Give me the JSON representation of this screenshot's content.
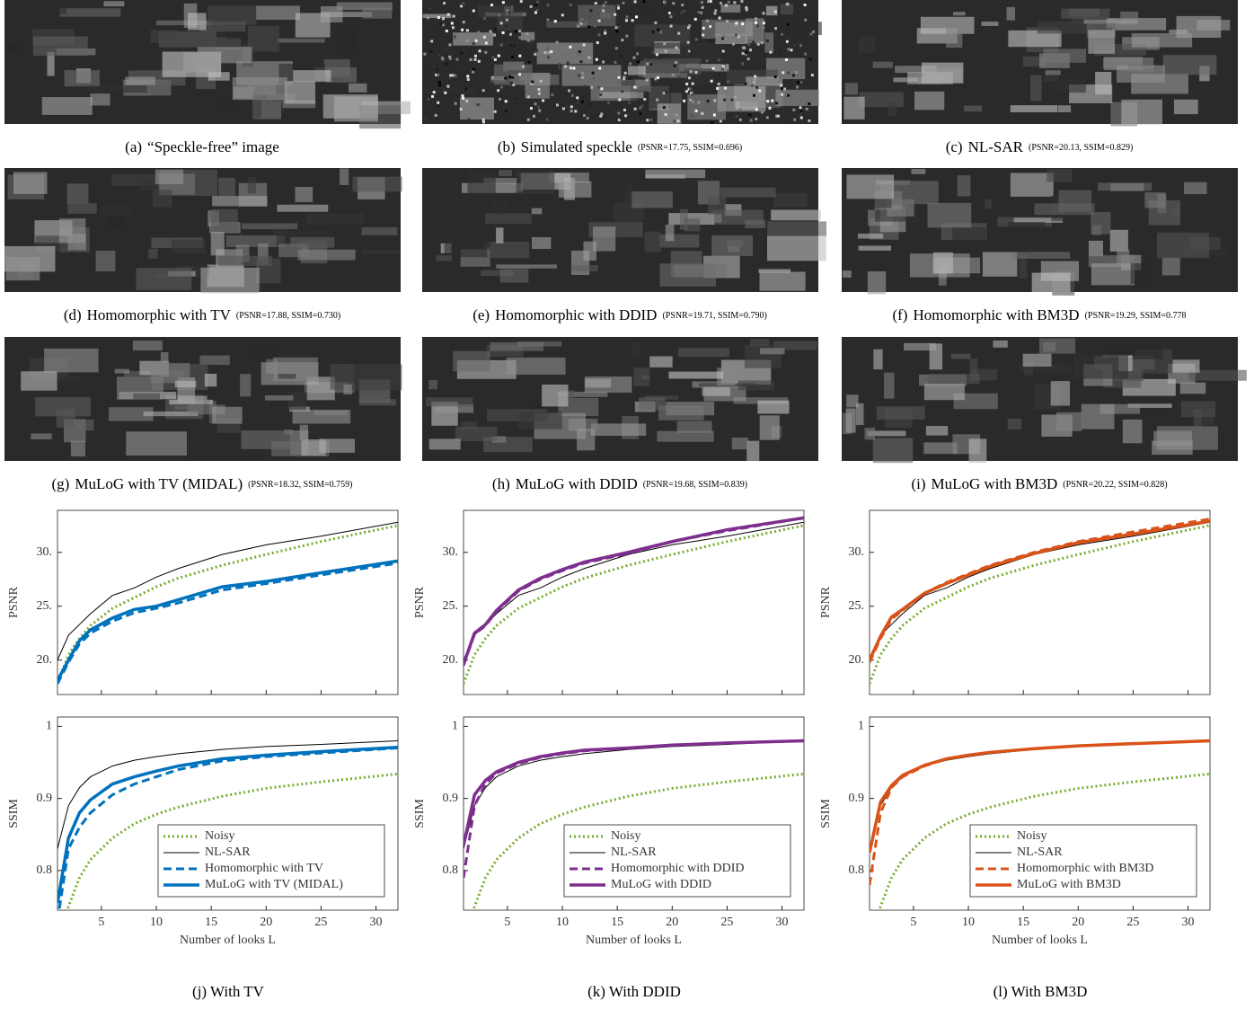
{
  "panels": [
    {
      "label": "(a)",
      "text": "“Speckle-free” image"
    },
    {
      "label": "(b)",
      "text": "Simulated speckle",
      "metrics": "(PSNR=17.75, SSIM=0.696)"
    },
    {
      "label": "(c)",
      "text": "NL-SAR",
      "metrics": "(PSNR=20.13, SSIM=0.829)"
    },
    {
      "label": "(d)",
      "text": "Homomorphic with TV",
      "metrics": "(PSNR=17.88, SSIM=0.730)"
    },
    {
      "label": "(e)",
      "text": "Homomorphic with DDID",
      "metrics": "(PSNR=19.71, SSIM=0.790)"
    },
    {
      "label": "(f)",
      "text": "Homomorphic with BM3D",
      "metrics": "(PSNR=19.29, SSIM=0.778"
    },
    {
      "label": "(g)",
      "text": "MuLoG with TV (MIDAL)",
      "metrics": "(PSNR=18.32, SSIM=0.759)"
    },
    {
      "label": "(h)",
      "text": "MuLoG with DDID",
      "metrics": "(PSNR=19.68, SSIM=0.839)"
    },
    {
      "label": "(i)",
      "text": "MuLoG with BM3D",
      "metrics": "(PSNR=20.22, SSIM=0.828)"
    }
  ],
  "chart_data": [
    {
      "type": "line",
      "ylabel": "PSNR",
      "x": [
        1,
        2,
        3,
        4,
        6,
        8,
        10,
        12,
        16,
        20,
        25,
        32
      ],
      "xlim": [
        1,
        32
      ],
      "xticks": [
        5,
        10,
        15,
        20,
        25,
        30
      ],
      "xtick_labels": false,
      "ylim": [
        16.8,
        33.9
      ],
      "yticks": [
        {
          "value": 20,
          "label": "20."
        },
        {
          "value": 25,
          "label": "25."
        },
        {
          "value": 30,
          "label": "30."
        }
      ],
      "legend": false,
      "series": [
        {
          "color": "#77ac30",
          "style": "dotted",
          "values": [
            17.8,
            20.5,
            22,
            23.2,
            24.8,
            25.8,
            26.8,
            27.6,
            28.8,
            29.8,
            31,
            32.5
          ]
        },
        {
          "color": "#000000",
          "style": "thin",
          "values": [
            20,
            22.3,
            23.3,
            24.3,
            26,
            26.7,
            27.7,
            28.5,
            29.8,
            30.7,
            31.5,
            32.8
          ]
        },
        {
          "color": "#0072bd",
          "style": "dashed",
          "values": [
            17.8,
            19.8,
            21.5,
            22.5,
            23.6,
            24.4,
            24.8,
            25.3,
            26.5,
            27.1,
            27.9,
            29
          ]
        },
        {
          "color": "#0072bd",
          "style": "thick",
          "values": [
            18.1,
            20,
            21.8,
            22.8,
            23.9,
            24.7,
            25,
            25.6,
            26.8,
            27.3,
            28.1,
            29.2
          ]
        }
      ]
    },
    {
      "type": "line",
      "ylabel": "SSIM",
      "xlabel": "Number of looks L",
      "x": [
        1,
        2,
        3,
        4,
        6,
        8,
        10,
        12,
        16,
        20,
        25,
        32
      ],
      "xlim": [
        1,
        32
      ],
      "xticks": [
        5,
        10,
        15,
        20,
        25,
        30
      ],
      "xtick_labels": true,
      "ylim": [
        0.745,
        1.013
      ],
      "yticks": [
        0.8,
        0.9,
        1
      ],
      "legend": "lower right",
      "series": [
        {
          "name": "Noisy",
          "color": "#77ac30",
          "style": "dotted",
          "values": [
            0.7,
            0.75,
            0.79,
            0.815,
            0.845,
            0.865,
            0.878,
            0.888,
            0.903,
            0.914,
            0.923,
            0.934
          ]
        },
        {
          "name": "NL-SAR",
          "color": "#000000",
          "style": "thin",
          "values": [
            0.83,
            0.89,
            0.915,
            0.93,
            0.945,
            0.953,
            0.958,
            0.962,
            0.968,
            0.972,
            0.975,
            0.98
          ]
        },
        {
          "name": "Homomorphic with TV",
          "color": "#0072bd",
          "style": "dashed",
          "values": [
            0.73,
            0.83,
            0.86,
            0.88,
            0.905,
            0.92,
            0.93,
            0.94,
            0.952,
            0.958,
            0.963,
            0.97
          ]
        },
        {
          "name": "MuLoG with TV (MIDAL)",
          "color": "#0072bd",
          "style": "thick",
          "values": [
            0.755,
            0.845,
            0.88,
            0.898,
            0.92,
            0.93,
            0.938,
            0.945,
            0.955,
            0.96,
            0.965,
            0.971
          ]
        }
      ]
    },
    {
      "type": "line",
      "ylabel": "PSNR",
      "x": [
        1,
        2,
        3,
        4,
        6,
        8,
        10,
        12,
        16,
        20,
        25,
        32
      ],
      "xlim": [
        1,
        32
      ],
      "xticks": [
        5,
        10,
        15,
        20,
        25,
        30
      ],
      "xtick_labels": false,
      "ylim": [
        16.8,
        33.9
      ],
      "yticks": [
        {
          "value": 20,
          "label": "20."
        },
        {
          "value": 25,
          "label": "25."
        },
        {
          "value": 30,
          "label": "30."
        }
      ],
      "legend": false,
      "series": [
        {
          "color": "#77ac30",
          "style": "dotted",
          "values": [
            17.8,
            20.5,
            22,
            23.2,
            24.8,
            25.8,
            26.8,
            27.6,
            28.8,
            29.8,
            31,
            32.5
          ]
        },
        {
          "color": "#000000",
          "style": "thin",
          "values": [
            20,
            22.3,
            23.3,
            24.3,
            26,
            26.7,
            27.7,
            28.5,
            29.8,
            30.7,
            31.5,
            32.8
          ]
        },
        {
          "color": "#7e2f8e",
          "style": "dashed",
          "values": [
            19.5,
            22.4,
            23.2,
            24.5,
            26.4,
            27.5,
            28.3,
            29,
            29.9,
            31,
            32,
            33.2
          ]
        },
        {
          "color": "#7e2f8e",
          "style": "thick",
          "values": [
            19.6,
            22.5,
            23.3,
            24.6,
            26.5,
            27.6,
            28.4,
            29.1,
            30,
            31,
            32.1,
            33.2
          ]
        }
      ]
    },
    {
      "type": "line",
      "ylabel": "SSIM",
      "xlabel": "Number of looks L",
      "x": [
        1,
        2,
        3,
        4,
        6,
        8,
        10,
        12,
        16,
        20,
        25,
        32
      ],
      "xlim": [
        1,
        32
      ],
      "xticks": [
        5,
        10,
        15,
        20,
        25,
        30
      ],
      "xtick_labels": true,
      "ylim": [
        0.745,
        1.013
      ],
      "yticks": [
        0.8,
        0.9,
        1
      ],
      "legend": "lower right",
      "series": [
        {
          "name": "Noisy",
          "color": "#77ac30",
          "style": "dotted",
          "values": [
            0.7,
            0.75,
            0.79,
            0.815,
            0.845,
            0.865,
            0.878,
            0.888,
            0.903,
            0.914,
            0.923,
            0.934
          ]
        },
        {
          "name": "NL-SAR",
          "color": "#000000",
          "style": "thin",
          "values": [
            0.83,
            0.89,
            0.915,
            0.93,
            0.945,
            0.953,
            0.958,
            0.962,
            0.968,
            0.972,
            0.975,
            0.98
          ]
        },
        {
          "name": "Homomorphic with DDID",
          "color": "#7e2f8e",
          "style": "dashed",
          "values": [
            0.79,
            0.89,
            0.92,
            0.935,
            0.948,
            0.957,
            0.962,
            0.966,
            0.97,
            0.974,
            0.977,
            0.98
          ]
        },
        {
          "name": "MuLoG with DDID",
          "color": "#7e2f8e",
          "style": "thick",
          "values": [
            0.835,
            0.905,
            0.925,
            0.937,
            0.95,
            0.958,
            0.963,
            0.967,
            0.97,
            0.974,
            0.977,
            0.98
          ]
        }
      ]
    },
    {
      "type": "line",
      "ylabel": "PSNR",
      "x": [
        1,
        2,
        3,
        4,
        6,
        8,
        10,
        12,
        16,
        20,
        25,
        32
      ],
      "xlim": [
        1,
        32
      ],
      "xticks": [
        5,
        10,
        15,
        20,
        25,
        30
      ],
      "xtick_labels": false,
      "ylim": [
        16.8,
        33.9
      ],
      "yticks": [
        {
          "value": 20,
          "label": "20."
        },
        {
          "value": 25,
          "label": "25."
        },
        {
          "value": 30,
          "label": "30."
        }
      ],
      "legend": false,
      "series": [
        {
          "color": "#77ac30",
          "style": "dotted",
          "values": [
            17.8,
            20.5,
            22,
            23.2,
            24.8,
            25.8,
            26.8,
            27.6,
            28.8,
            29.8,
            31,
            32.5
          ]
        },
        {
          "color": "#000000",
          "style": "thin",
          "values": [
            20,
            22.3,
            23.3,
            24.3,
            26,
            26.7,
            27.7,
            28.5,
            29.8,
            30.7,
            31.5,
            32.8
          ]
        },
        {
          "color": "#d95319",
          "style": "dashed",
          "values": [
            19.8,
            22,
            23.8,
            24.6,
            26.2,
            27.2,
            28,
            28.8,
            30,
            31,
            31.9,
            33.1
          ]
        },
        {
          "color": "#d95319",
          "style": "thick",
          "values": [
            20,
            22.2,
            24,
            24.7,
            26.2,
            27.1,
            27.9,
            28.7,
            29.9,
            30.9,
            31.7,
            32.9
          ]
        }
      ]
    },
    {
      "type": "line",
      "ylabel": "SSIM",
      "xlabel": "Number of looks L",
      "x": [
        1,
        2,
        3,
        4,
        6,
        8,
        10,
        12,
        16,
        20,
        25,
        32
      ],
      "xlim": [
        1,
        32
      ],
      "xticks": [
        5,
        10,
        15,
        20,
        25,
        30
      ],
      "xtick_labels": true,
      "ylim": [
        0.745,
        1.013
      ],
      "yticks": [
        0.8,
        0.9,
        1
      ],
      "legend": "lower right",
      "series": [
        {
          "name": "Noisy",
          "color": "#77ac30",
          "style": "dotted",
          "values": [
            0.7,
            0.75,
            0.79,
            0.815,
            0.845,
            0.865,
            0.878,
            0.888,
            0.903,
            0.914,
            0.923,
            0.934
          ]
        },
        {
          "name": "NL-SAR",
          "color": "#000000",
          "style": "thin",
          "values": [
            0.83,
            0.89,
            0.915,
            0.93,
            0.945,
            0.953,
            0.958,
            0.962,
            0.968,
            0.972,
            0.975,
            0.98
          ]
        },
        {
          "name": "Homomorphic with BM3D",
          "color": "#d95319",
          "style": "dashed",
          "values": [
            0.78,
            0.88,
            0.915,
            0.93,
            0.945,
            0.955,
            0.96,
            0.964,
            0.969,
            0.973,
            0.976,
            0.98
          ]
        },
        {
          "name": "MuLoG with BM3D",
          "color": "#d95319",
          "style": "thick",
          "values": [
            0.825,
            0.895,
            0.918,
            0.932,
            0.946,
            0.955,
            0.96,
            0.964,
            0.969,
            0.973,
            0.976,
            0.98
          ]
        }
      ]
    }
  ],
  "column_captions": [
    "(j) With TV",
    "(k) With DDID",
    "(l) With BM3D"
  ]
}
